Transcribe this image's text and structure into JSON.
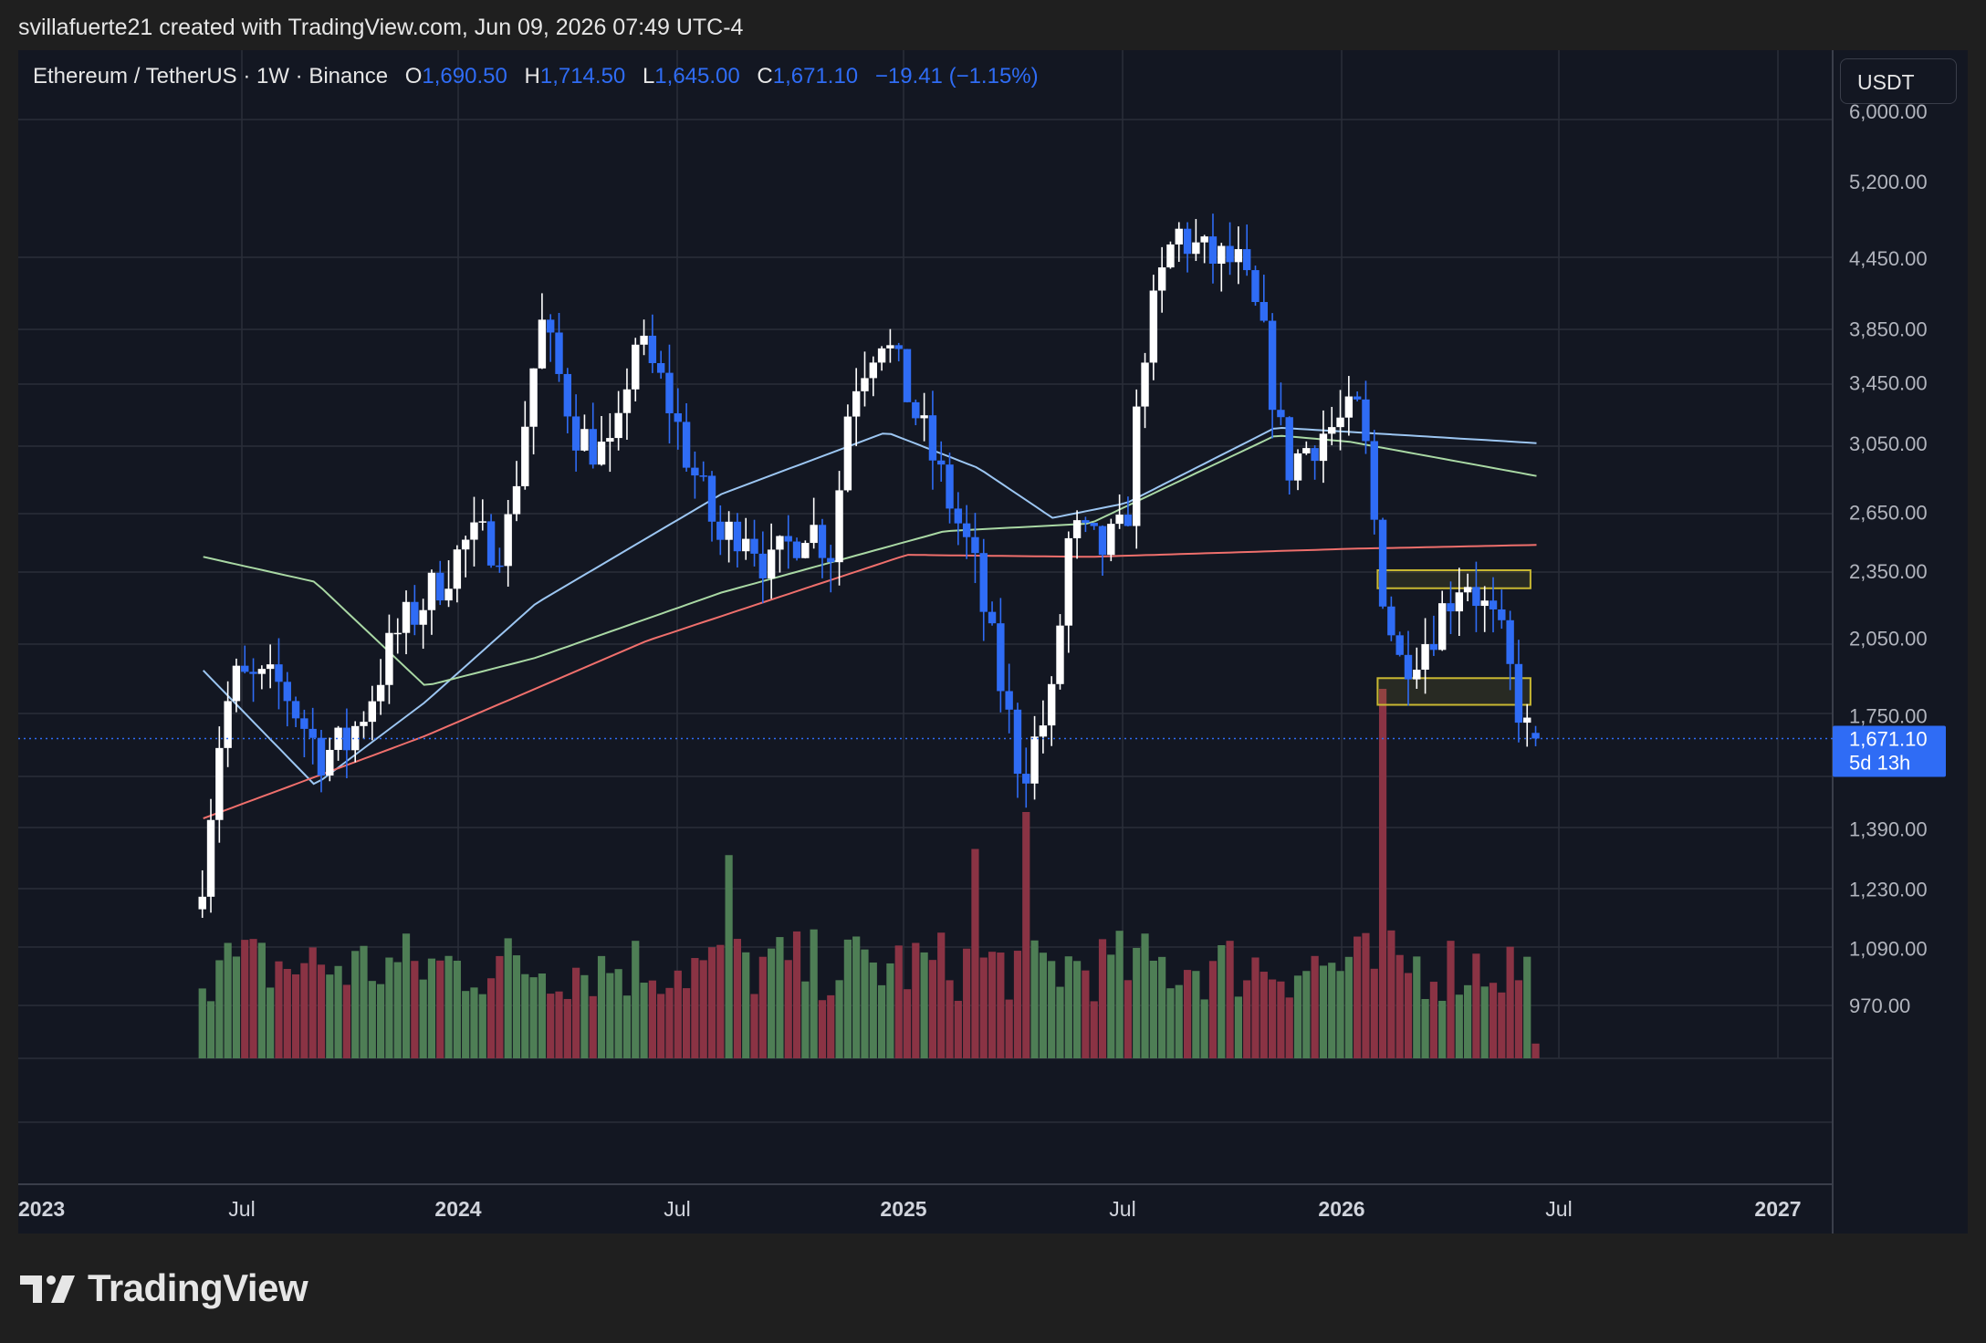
{
  "header": {
    "creator_line": "svillafuerte21 created with TradingView.com, Jun 09, 2026 07:49 UTC-4"
  },
  "legend": {
    "symbol": "Ethereum / TetherUS · 1W · Binance",
    "o_label": "O",
    "o_value": "1,690.50",
    "h_label": "H",
    "h_value": "1,714.50",
    "l_label": "L",
    "l_value": "1,645.00",
    "c_label": "C",
    "c_value": "1,671.10",
    "change": "−19.41 (−1.15%)"
  },
  "toolbar": {
    "currency": "USDT"
  },
  "price_tag": {
    "price": "1,671.10",
    "countdown": "5d 13h"
  },
  "brand": {
    "name": "TradingView"
  },
  "colors": {
    "up": "#ffffff",
    "down": "#2f6cf5",
    "vol_up": "#4e7e55",
    "vol_down": "#8a3344",
    "ma_short": "#9cc6f2",
    "ma_mid": "#a9d8a4",
    "ma_long": "#ef6f6c",
    "zone": "#c9b832"
  },
  "chart_data": {
    "type": "candlestick",
    "title": "Ethereum / TetherUS · 1W · Binance",
    "y_scale": "log",
    "y_ticks": [
      "6,000.00",
      "5,200.00",
      "4,450.00",
      "3,850.00",
      "3,450.00",
      "3,050.00",
      "2,650.00",
      "2,350.00",
      "2,050.00",
      "1,750.00",
      "1,390.00",
      "1,230.00",
      "1,090.00",
      "970.00"
    ],
    "x_ticks": [
      "2023",
      "Jul",
      "2024",
      "Jul",
      "2025",
      "Jul",
      "2026",
      "Jul",
      "2027"
    ],
    "anchors": [
      [
        "2023-06-01",
        1180
      ],
      [
        "2023-06-20",
        1700
      ],
      [
        "2023-07-01",
        1880
      ],
      [
        "2023-08-10",
        1860
      ],
      [
        "2023-09-10",
        1620
      ],
      [
        "2023-10-01",
        1650
      ],
      [
        "2023-10-20",
        1800
      ],
      [
        "2023-11-10",
        2050
      ],
      [
        "2023-12-10",
        2250
      ],
      [
        "2024-01-10",
        2500
      ],
      [
        "2024-02-10",
        2500
      ],
      [
        "2024-03-10",
        3900
      ],
      [
        "2024-04-10",
        3100
      ],
      [
        "2024-05-10",
        2950
      ],
      [
        "2024-05-25",
        3800
      ],
      [
        "2024-06-20",
        3400
      ],
      [
        "2024-07-10",
        2950
      ],
      [
        "2024-08-05",
        2500
      ],
      [
        "2024-08-25",
        2600
      ],
      [
        "2024-09-15",
        2350
      ],
      [
        "2024-10-15",
        2600
      ],
      [
        "2024-11-05",
        2450
      ],
      [
        "2024-11-20",
        3400
      ],
      [
        "2024-12-15",
        3850
      ],
      [
        "2025-01-10",
        3300
      ],
      [
        "2025-02-05",
        2800
      ],
      [
        "2025-03-01",
        2400
      ],
      [
        "2025-03-25",
        1850
      ],
      [
        "2025-04-10",
        1550
      ],
      [
        "2025-05-05",
        1800
      ],
      [
        "2025-05-20",
        2550
      ],
      [
        "2025-06-15",
        2450
      ],
      [
        "2025-07-05",
        2550
      ],
      [
        "2025-07-20",
        3700
      ],
      [
        "2025-08-15",
        4700
      ],
      [
        "2025-09-10",
        4450
      ],
      [
        "2025-10-05",
        4400
      ],
      [
        "2025-10-25",
        3850
      ],
      [
        "2025-11-15",
        2900
      ],
      [
        "2025-12-10",
        3100
      ],
      [
        "2026-01-15",
        3250
      ],
      [
        "2026-02-01",
        2300
      ],
      [
        "2026-02-15",
        1950
      ],
      [
        "2026-03-10",
        2050
      ],
      [
        "2026-04-10",
        2350
      ],
      [
        "2026-05-10",
        2050
      ],
      [
        "2026-05-31",
        1690.5
      ]
    ],
    "last_bar": {
      "date": "2026-06-07",
      "open": 1690.5,
      "high": 1714.5,
      "low": 1645.0,
      "close": 1671.1
    },
    "moving_averages": [
      {
        "color": "#9cc6f2",
        "anchors": [
          [
            "2023-06-01",
            1920
          ],
          [
            "2023-09-01",
            1520
          ],
          [
            "2023-12-01",
            1800
          ],
          [
            "2024-03-01",
            2200
          ],
          [
            "2024-08-01",
            2750
          ],
          [
            "2024-12-15",
            3120
          ],
          [
            "2025-03-01",
            2900
          ],
          [
            "2025-05-01",
            2620
          ],
          [
            "2025-07-01",
            2700
          ],
          [
            "2025-11-01",
            3150
          ],
          [
            "2026-06-07",
            3050
          ]
        ]
      },
      {
        "color": "#a9d8a4",
        "anchors": [
          [
            "2023-06-01",
            2420
          ],
          [
            "2023-09-01",
            2300
          ],
          [
            "2023-12-01",
            1860
          ],
          [
            "2024-03-01",
            1970
          ],
          [
            "2024-08-01",
            2250
          ],
          [
            "2025-02-01",
            2550
          ],
          [
            "2025-06-01",
            2590
          ],
          [
            "2025-11-01",
            3100
          ],
          [
            "2026-01-01",
            3060
          ],
          [
            "2026-06-07",
            2850
          ]
        ]
      },
      {
        "color": "#ef6f6c",
        "anchors": [
          [
            "2023-06-01",
            1420
          ],
          [
            "2023-12-01",
            1680
          ],
          [
            "2024-06-01",
            2040
          ],
          [
            "2025-01-01",
            2430
          ],
          [
            "2025-06-01",
            2420
          ],
          [
            "2026-01-01",
            2460
          ],
          [
            "2026-06-07",
            2480
          ]
        ]
      }
    ],
    "zones": [
      {
        "from": "2026-01-24",
        "to": "2026-05-30",
        "low": 2270,
        "high": 2355
      },
      {
        "from": "2026-01-24",
        "to": "2026-05-30",
        "low": 1790,
        "high": 1890
      }
    ],
    "volume_spikes": [
      [
        "2026-01-24",
        3.0
      ],
      [
        "2025-04-05",
        2.0
      ],
      [
        "2025-02-22",
        1.7
      ],
      [
        "2024-08-05",
        1.65
      ],
      [
        "2026-05-31",
        1.7
      ]
    ],
    "current_price": 1671.1
  }
}
